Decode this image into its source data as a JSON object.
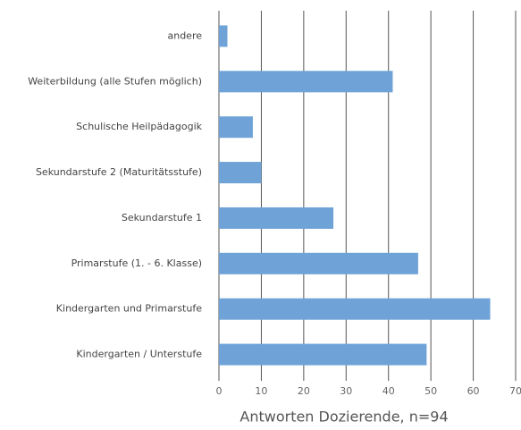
{
  "chart_data": {
    "type": "bar",
    "orientation": "horizontal",
    "categories": [
      "andere",
      "Weiterbildung (alle Stufen möglich)",
      "Schulische Heilpädagogik",
      "Sekundarstufe 2 (Maturitätsstufe)",
      "Sekundarstufe 1",
      "Primarstufe (1. - 6. Klasse)",
      "Kindergarten und Primarstufe",
      "Kindergarten / Unterstufe"
    ],
    "values": [
      2,
      41,
      8,
      10,
      27,
      47,
      64,
      49
    ],
    "color": "#6fa3d8",
    "x_label": "Antworten Dozierende, n=94",
    "xlim": [
      0,
      70
    ],
    "xticks": [
      0,
      10,
      20,
      30,
      40,
      50,
      60,
      70
    ],
    "grid": true
  }
}
